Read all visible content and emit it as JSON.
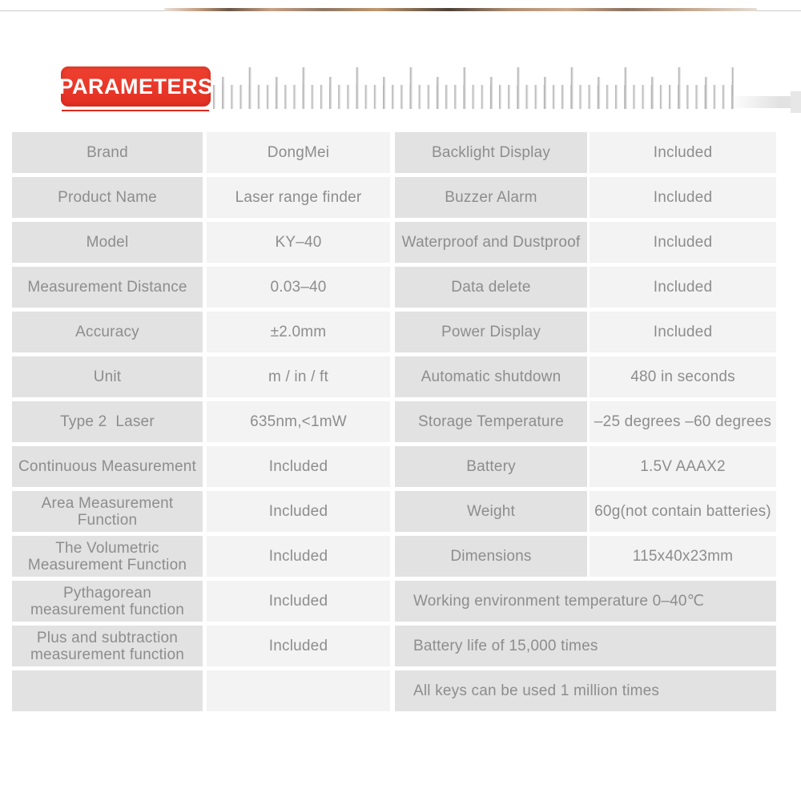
{
  "header": {
    "badge_label": "PARAMETERS",
    "badge_color": "#e8382b",
    "ruler_icon": "ruler-ticks"
  },
  "colors": {
    "label_cell_bg": "#e2e2e2",
    "value_cell_bg": "#f3f3f3",
    "text_gray": "#8d8d8d",
    "accent_red": "#e8382b"
  },
  "table": {
    "rows": [
      {
        "left": {
          "label": "Brand",
          "value": "DongMei"
        },
        "right": {
          "label": "Backlight Display",
          "value": "Included"
        }
      },
      {
        "left": {
          "label": "Product Name",
          "value": "Laser range finder"
        },
        "right": {
          "label": "Buzzer Alarm",
          "value": "Included"
        }
      },
      {
        "left": {
          "label": "Model",
          "value": "KY–40"
        },
        "right": {
          "label": "Waterproof and Dustproof",
          "value": "Included"
        }
      },
      {
        "left": {
          "label": "Measurement Distance",
          "value": "0.03–40"
        },
        "right": {
          "label": "Data delete",
          "value": "Included"
        }
      },
      {
        "left": {
          "label": "Accuracy",
          "value": "±2.0mm"
        },
        "right": {
          "label": "Power Display",
          "value": "Included"
        }
      },
      {
        "left": {
          "label": "Unit",
          "value": "m / in / ft"
        },
        "right": {
          "label": "Automatic shutdown",
          "value": "480 in seconds"
        }
      },
      {
        "left": {
          "label": "Type 2  Laser",
          "value": "635nm,<1mW"
        },
        "right": {
          "label": "Storage Temperature",
          "value": "–25 degrees –60 degrees"
        }
      },
      {
        "left": {
          "label": "Continuous Measurement",
          "value": "Included"
        },
        "right": {
          "label": "Battery",
          "value": "1.5V AAAX2"
        }
      },
      {
        "left": {
          "label": "Area Measurement Function",
          "value": "Included"
        },
        "right": {
          "label": "Weight",
          "value": "60g(not contain batteries)"
        }
      },
      {
        "left": {
          "label": "The Volumetric Measurement Function",
          "value": "Included"
        },
        "right": {
          "label": "Dimensions",
          "value": "115x40x23mm"
        }
      },
      {
        "left": {
          "label": "Pythagorean measurement function",
          "value": "Included"
        },
        "right": {
          "merged": "Working environment temperature 0–40℃"
        }
      },
      {
        "left": {
          "label": "Plus and subtraction measurement function",
          "value": "Included"
        },
        "right": {
          "merged": "Battery life of 15,000 times"
        }
      },
      {
        "left": {
          "label": "",
          "value": ""
        },
        "right": {
          "merged": "All keys can be used 1 million times"
        }
      }
    ]
  }
}
